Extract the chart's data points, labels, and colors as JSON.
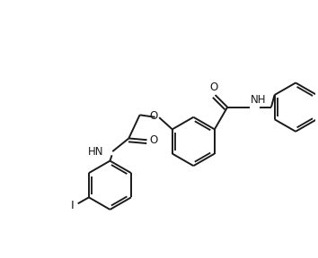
{
  "bg_color": "#ffffff",
  "line_color": "#1a1a1a",
  "line_width": 1.4,
  "font_size": 8.5,
  "figsize": [
    3.54,
    2.88
  ],
  "dpi": 100,
  "xlim": [
    0,
    10
  ],
  "ylim": [
    0,
    8
  ]
}
